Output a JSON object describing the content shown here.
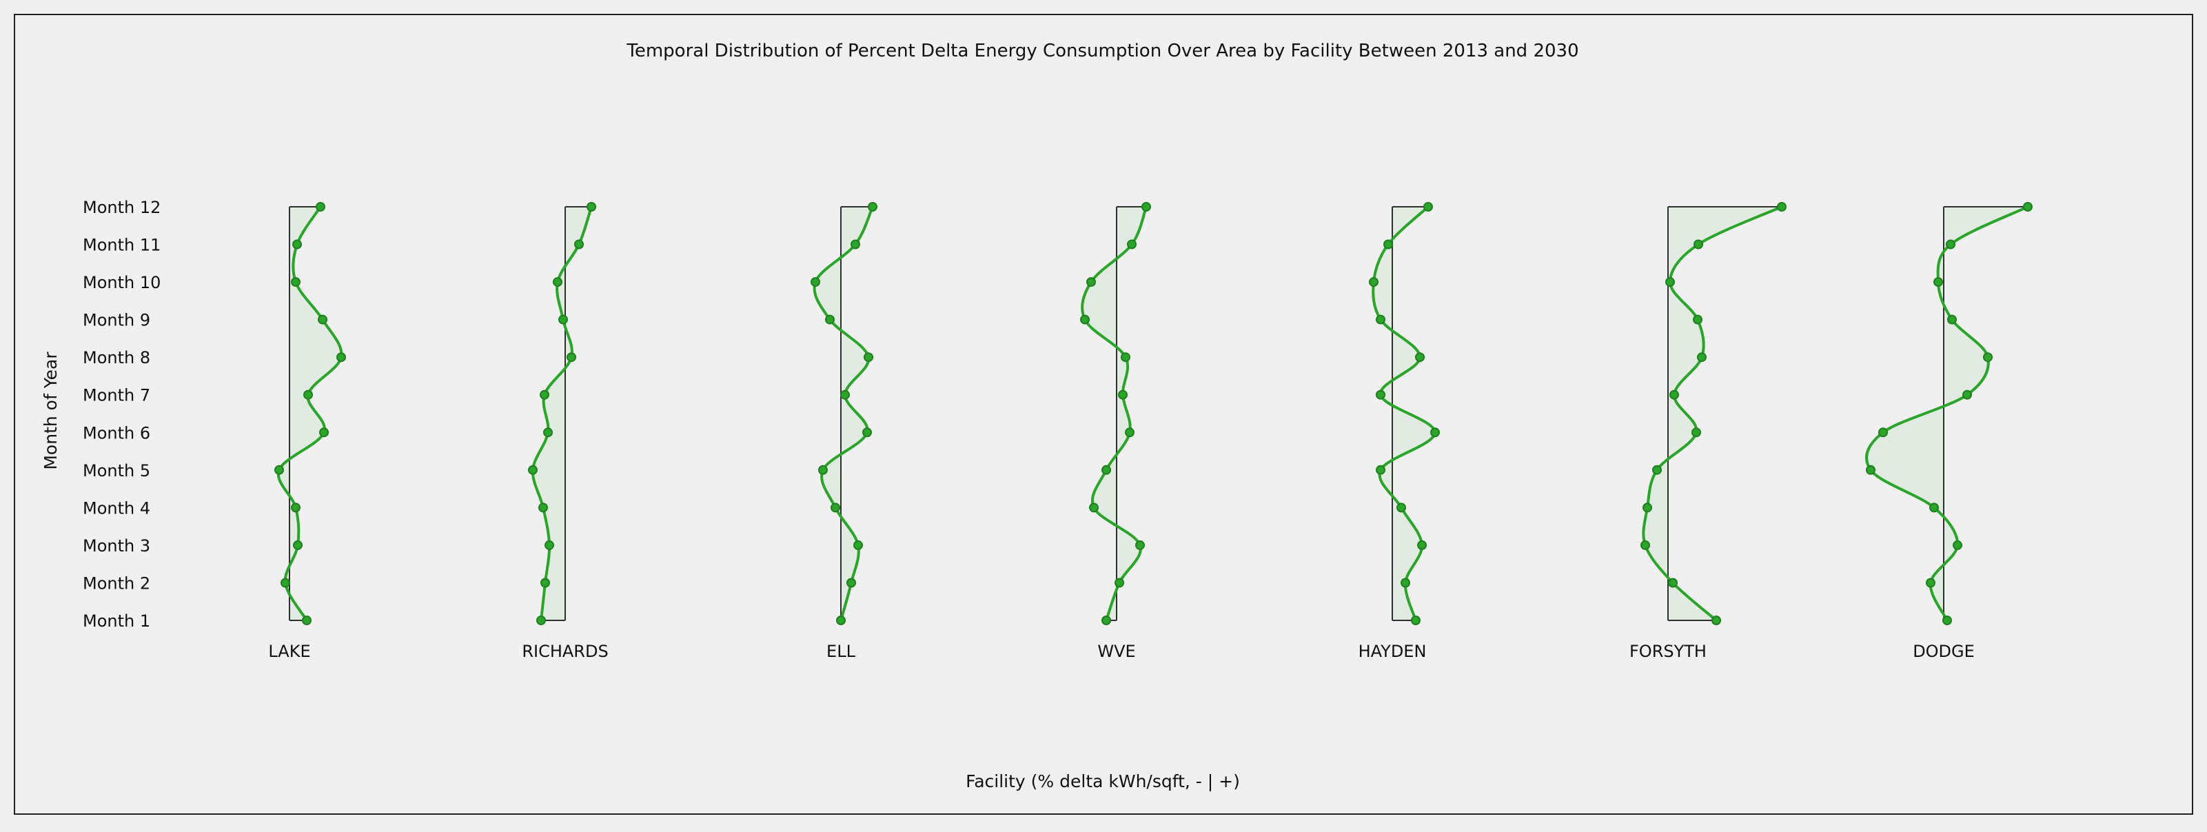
{
  "chart_data": {
    "type": "violin-line",
    "title": "Temporal Distribution of Percent Delta Energy Consumption Over Area by Facility Between 2013 and 2030",
    "xlabel": "Facility (% delta kWh/sqft, - | +)",
    "ylabel": "Month of Year",
    "y_categories": [
      "Month 1",
      "Month 2",
      "Month 3",
      "Month 4",
      "Month 5",
      "Month 6",
      "Month 7",
      "Month 8",
      "Month 9",
      "Month 10",
      "Month 11",
      "Month 12"
    ],
    "grid": false,
    "legend": "none",
    "colors": {
      "line": "#2aa52a",
      "fill": "#e1ebe1",
      "axis": "#2f2f2f",
      "background": "#f0f0f0"
    },
    "facilities": [
      {
        "name": "LAKE",
        "values": [
          2.5,
          -0.6,
          1.2,
          0.9,
          -1.5,
          5.0,
          2.7,
          7.5,
          4.8,
          0.9,
          1.1,
          4.5
        ]
      },
      {
        "name": "RICHARDS",
        "values": [
          -3.5,
          -2.9,
          -2.3,
          -3.2,
          -4.7,
          -2.5,
          -3.0,
          0.9,
          -0.3,
          -1.1,
          2.0,
          3.8
        ]
      },
      {
        "name": "ELL",
        "values": [
          0.0,
          1.5,
          2.5,
          -0.8,
          -2.6,
          3.8,
          0.6,
          4.0,
          -1.6,
          -3.7,
          2.1,
          4.6
        ]
      },
      {
        "name": "WVE",
        "values": [
          -1.5,
          0.4,
          3.4,
          -3.3,
          -1.5,
          1.9,
          0.9,
          1.3,
          -4.6,
          -3.7,
          2.2,
          4.3
        ]
      },
      {
        "name": "HAYDEN",
        "values": [
          3.4,
          1.9,
          4.3,
          1.3,
          -1.7,
          6.2,
          -1.7,
          4.0,
          -1.7,
          -2.7,
          -0.6,
          5.2
        ]
      },
      {
        "name": "FORSYTH",
        "values": [
          7.0,
          0.7,
          -3.3,
          -3.0,
          -1.6,
          4.1,
          0.9,
          4.9,
          4.3,
          0.3,
          4.4,
          16.5
        ]
      },
      {
        "name": "DODGE",
        "values": [
          0.5,
          -1.9,
          2.0,
          -1.4,
          -10.6,
          -8.8,
          3.4,
          6.4,
          1.2,
          -0.8,
          1.0,
          12.2
        ]
      }
    ]
  }
}
